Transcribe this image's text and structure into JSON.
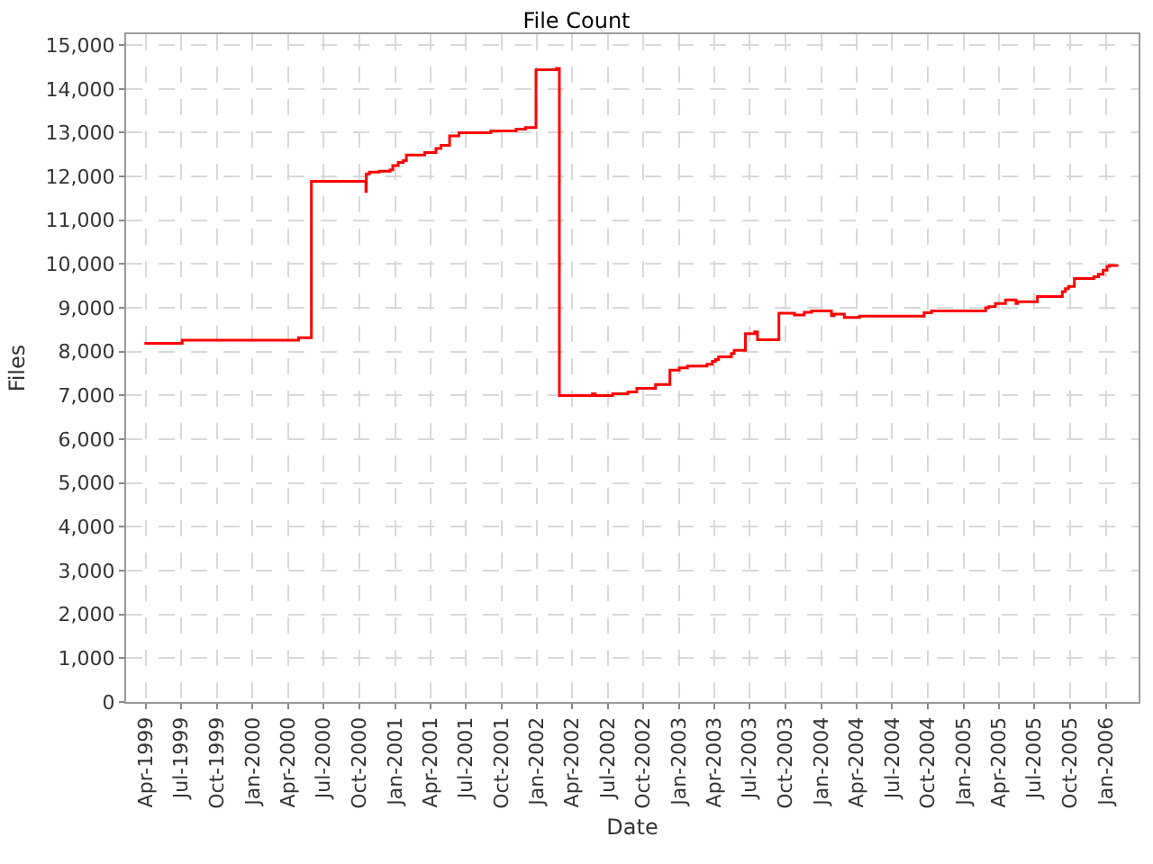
{
  "chart_data": {
    "type": "step",
    "title": "File Count",
    "xlabel": "Date",
    "ylabel": "Files",
    "x": [
      "1999-03-29",
      "1999-07-04",
      "2000-04-28",
      "2000-05-31",
      "2000-10-18",
      "2000-10-19",
      "2000-10-27",
      "2000-11-21",
      "2000-12-19",
      "2000-12-26",
      "2001-01-09",
      "2001-01-22",
      "2001-01-30",
      "2001-03-18",
      "2001-04-16",
      "2001-04-29",
      "2001-05-21",
      "2001-06-14",
      "2001-09-04",
      "2001-11-08",
      "2001-12-02",
      "2001-12-29",
      "2002-02-20",
      "2002-02-27",
      "2002-05-23",
      "2002-05-30",
      "2002-07-14",
      "2002-08-22",
      "2002-09-14",
      "2002-11-01",
      "2002-12-08",
      "2003-01-01",
      "2003-01-22",
      "2003-03-13",
      "2003-03-27",
      "2003-04-04",
      "2003-04-12",
      "2003-05-15",
      "2003-05-22",
      "2003-06-20",
      "2003-07-14",
      "2003-07-21",
      "2003-09-14",
      "2003-10-24",
      "2003-11-18",
      "2003-12-07",
      "2004-01-27",
      "2004-02-03",
      "2004-02-29",
      "2004-04-08",
      "2004-09-21",
      "2004-10-10",
      "2005-02-26",
      "2005-03-06",
      "2005-03-23",
      "2005-04-18",
      "2005-05-15",
      "2005-05-19",
      "2005-07-09",
      "2005-09-11",
      "2005-09-19",
      "2005-09-27",
      "2005-10-12",
      "2005-12-01",
      "2005-12-13",
      "2005-12-25",
      "2006-01-04",
      "2006-01-10",
      "2006-02-02"
    ],
    "series": [
      {
        "color": "#ff0000",
        "values": [
          8190,
          8260,
          8320,
          11890,
          11660,
          12060,
          12100,
          12120,
          12150,
          12250,
          12320,
          12360,
          12490,
          12550,
          12640,
          12710,
          12930,
          13000,
          13040,
          13080,
          13120,
          14440,
          14470,
          7000,
          7040,
          7000,
          7040,
          7080,
          7160,
          7250,
          7580,
          7630,
          7670,
          7710,
          7780,
          7820,
          7880,
          7960,
          8030,
          8410,
          8450,
          8270,
          8880,
          8840,
          8900,
          8930,
          8820,
          8860,
          8780,
          8810,
          8890,
          8930,
          9000,
          9030,
          9100,
          9180,
          9100,
          9140,
          9260,
          9370,
          9440,
          9490,
          9670,
          9710,
          9770,
          9860,
          9950,
          9970,
          9970
        ]
      }
    ],
    "xlim": [
      "1999-02-10",
      "2006-03-26"
    ],
    "xticks": [
      {
        "value": "1999-04-01",
        "label": "Apr-1999"
      },
      {
        "value": "1999-07-01",
        "label": "Jul-1999"
      },
      {
        "value": "1999-10-01",
        "label": "Oct-1999"
      },
      {
        "value": "2000-01-01",
        "label": "Jan-2000"
      },
      {
        "value": "2000-04-01",
        "label": "Apr-2000"
      },
      {
        "value": "2000-07-01",
        "label": "Jul-2000"
      },
      {
        "value": "2000-10-01",
        "label": "Oct-2000"
      },
      {
        "value": "2001-01-01",
        "label": "Jan-2001"
      },
      {
        "value": "2001-04-01",
        "label": "Apr-2001"
      },
      {
        "value": "2001-07-01",
        "label": "Jul-2001"
      },
      {
        "value": "2001-10-01",
        "label": "Oct-2001"
      },
      {
        "value": "2002-01-01",
        "label": "Jan-2002"
      },
      {
        "value": "2002-04-01",
        "label": "Apr-2002"
      },
      {
        "value": "2002-07-01",
        "label": "Jul-2002"
      },
      {
        "value": "2002-10-01",
        "label": "Oct-2002"
      },
      {
        "value": "2003-01-01",
        "label": "Jan-2003"
      },
      {
        "value": "2003-04-01",
        "label": "Apr-2003"
      },
      {
        "value": "2003-07-01",
        "label": "Jul-2003"
      },
      {
        "value": "2003-10-01",
        "label": "Oct-2003"
      },
      {
        "value": "2004-01-01",
        "label": "Jan-2004"
      },
      {
        "value": "2004-04-01",
        "label": "Apr-2004"
      },
      {
        "value": "2004-07-01",
        "label": "Jul-2004"
      },
      {
        "value": "2004-10-01",
        "label": "Oct-2004"
      },
      {
        "value": "2005-01-01",
        "label": "Jan-2005"
      },
      {
        "value": "2005-04-01",
        "label": "Apr-2005"
      },
      {
        "value": "2005-07-01",
        "label": "Jul-2005"
      },
      {
        "value": "2005-10-01",
        "label": "Oct-2005"
      },
      {
        "value": "2006-01-01",
        "label": "Jan-2006"
      }
    ],
    "ylim": [
      0,
      15250
    ],
    "yticks": [
      0,
      {
        "value": 1000,
        "label": "1,000"
      },
      {
        "value": 2000,
        "label": "2,000"
      },
      {
        "value": 3000,
        "label": "3,000"
      },
      {
        "value": 4000,
        "label": "4,000"
      },
      {
        "value": 5000,
        "label": "5,000"
      },
      {
        "value": 6000,
        "label": "6,000"
      },
      {
        "value": 7000,
        "label": "7,000"
      },
      {
        "value": 8000,
        "label": "8,000"
      },
      {
        "value": 9000,
        "label": "9,000"
      },
      {
        "value": 10000,
        "label": "10,000"
      },
      {
        "value": 11000,
        "label": "11,000"
      },
      {
        "value": 12000,
        "label": "12,000"
      },
      {
        "value": 13000,
        "label": "13,000"
      },
      {
        "value": 14000,
        "label": "14,000"
      },
      {
        "value": 15000,
        "label": "15,000"
      }
    ],
    "grid": true
  }
}
